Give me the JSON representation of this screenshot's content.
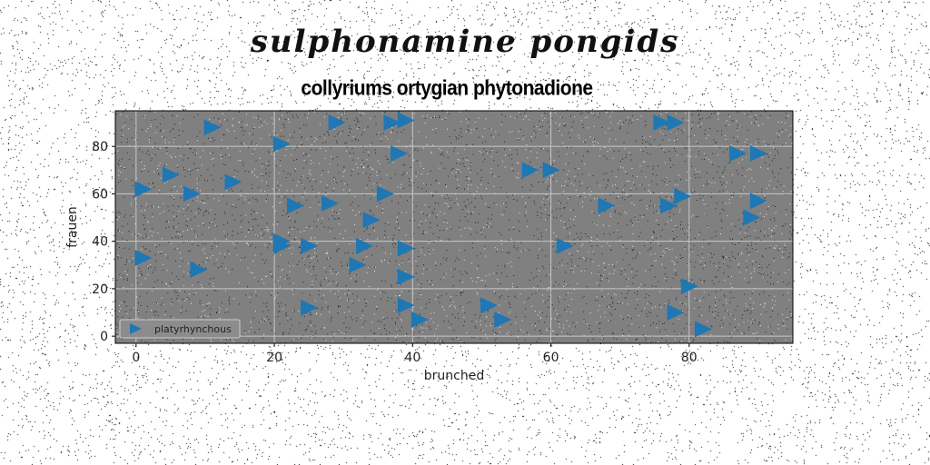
{
  "suptitle": "sulphonamine pongids",
  "chart_data": {
    "type": "scatter",
    "title": "collyriums ortygian phytonadione",
    "xlabel": "brunched",
    "ylabel": "frauen",
    "xlim": [
      -3,
      95
    ],
    "ylim": [
      -3,
      95
    ],
    "xticks": [
      0,
      20,
      40,
      60,
      80
    ],
    "yticks": [
      0,
      20,
      40,
      60,
      80
    ],
    "grid": true,
    "legend_position": "lower-left",
    "series": [
      {
        "name": "platyrhynchous",
        "marker": "triangle-right",
        "color": "#1f77b4",
        "x": [
          11,
          29,
          37,
          39,
          76,
          78,
          21,
          38,
          1,
          5,
          8,
          14,
          36,
          23,
          28,
          34,
          21,
          21,
          25,
          33,
          39,
          1,
          9,
          32,
          39,
          25,
          39,
          41,
          51,
          53,
          57,
          60,
          62,
          68,
          77,
          79,
          87,
          90,
          90,
          89,
          80,
          78,
          82
        ],
        "y": [
          88,
          90,
          90,
          91,
          90,
          90,
          81,
          77,
          62,
          68,
          60,
          65,
          60,
          55,
          56,
          49,
          40,
          38,
          38,
          38,
          37,
          33,
          28,
          30,
          25,
          12,
          13,
          7,
          13,
          7,
          70,
          70,
          38,
          55,
          55,
          59,
          77,
          77,
          57,
          50,
          21,
          10,
          3
        ]
      }
    ]
  }
}
